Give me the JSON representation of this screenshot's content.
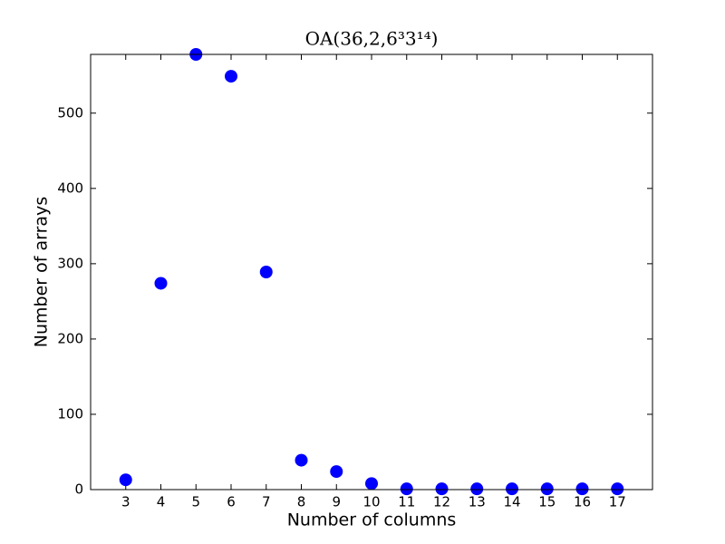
{
  "chart_data": {
    "type": "scatter",
    "title": "OA(36,2,6³3¹⁴)",
    "x_label": "Number of columns",
    "y_label": "Number of arrays",
    "x": [
      3,
      4,
      5,
      6,
      7,
      8,
      9,
      10,
      11,
      12,
      13,
      14,
      15,
      16,
      17
    ],
    "values": [
      13,
      274,
      578,
      549,
      289,
      39,
      24,
      8,
      1,
      1,
      1,
      1,
      1,
      1,
      1
    ],
    "color": "#0000ff",
    "xlim": [
      2,
      18
    ],
    "xticks": [
      3,
      4,
      5,
      6,
      7,
      8,
      9,
      10,
      11,
      12,
      13,
      14,
      15,
      16,
      17
    ],
    "ylim": [
      0,
      578
    ],
    "yticks": [
      0,
      100,
      200,
      300,
      400,
      500
    ]
  }
}
